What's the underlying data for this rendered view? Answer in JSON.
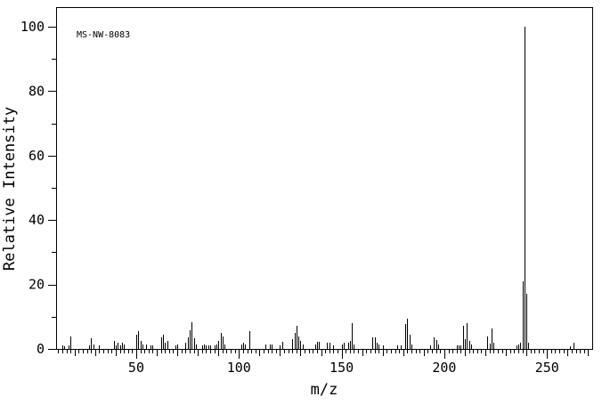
{
  "colors": {
    "foreground": "#000000",
    "background": "#ffffff"
  },
  "chart_data": {
    "type": "bar",
    "subtype": "mass-spectrum",
    "annotation": "MS-NW-8083",
    "xlabel": "m/z",
    "ylabel": "Relative Intensity",
    "xlim": [
      11,
      272
    ],
    "ylim": [
      0,
      106
    ],
    "x_label_ticks": [
      50,
      100,
      150,
      200,
      250
    ],
    "x_medium_tick_step": 10,
    "x_minor_tick_step": 2,
    "y_label_ticks": [
      0,
      20,
      40,
      60,
      80,
      100
    ],
    "y_minor_tick_step": 10,
    "grid": false,
    "legend": false,
    "base_peak": {
      "mz": 239,
      "intensity": 100
    },
    "peaks": [
      [
        14,
        1
      ],
      [
        15,
        0.8
      ],
      [
        17,
        1
      ],
      [
        18,
        4
      ],
      [
        27,
        1
      ],
      [
        28,
        3.3
      ],
      [
        29,
        1.5
      ],
      [
        32,
        1
      ],
      [
        39,
        2.5
      ],
      [
        40,
        1.2
      ],
      [
        41,
        2
      ],
      [
        42,
        1.2
      ],
      [
        43,
        2
      ],
      [
        44,
        1.5
      ],
      [
        50,
        4.5
      ],
      [
        51,
        5.5
      ],
      [
        52,
        2.5
      ],
      [
        53,
        1.5
      ],
      [
        55,
        1.5
      ],
      [
        57,
        1.2
      ],
      [
        58,
        1
      ],
      [
        62,
        3.5
      ],
      [
        63,
        4.5
      ],
      [
        64,
        2
      ],
      [
        65,
        2.5
      ],
      [
        69,
        1
      ],
      [
        70,
        1.5
      ],
      [
        74,
        2
      ],
      [
        75,
        3.5
      ],
      [
        76,
        5.8
      ],
      [
        77,
        8.4
      ],
      [
        78,
        3.3
      ],
      [
        79,
        1.5
      ],
      [
        82,
        1.2
      ],
      [
        83,
        1.3
      ],
      [
        84,
        1
      ],
      [
        85,
        1
      ],
      [
        86,
        1
      ],
      [
        88,
        1.2
      ],
      [
        89,
        1.3
      ],
      [
        90,
        2.5
      ],
      [
        91,
        5
      ],
      [
        92,
        4
      ],
      [
        93,
        1.5
      ],
      [
        101,
        1.5
      ],
      [
        102,
        2
      ],
      [
        103,
        1.3
      ],
      [
        105,
        5.5
      ],
      [
        113,
        1.3
      ],
      [
        115,
        1.5
      ],
      [
        116,
        1.5
      ],
      [
        120,
        1.2
      ],
      [
        121,
        2.2
      ],
      [
        126,
        3
      ],
      [
        127,
        5
      ],
      [
        128,
        7.2
      ],
      [
        129,
        4
      ],
      [
        130,
        2.5
      ],
      [
        131,
        1.5
      ],
      [
        137,
        1.5
      ],
      [
        138,
        2.2
      ],
      [
        139,
        2.2
      ],
      [
        143,
        2
      ],
      [
        144,
        2
      ],
      [
        146,
        1
      ],
      [
        150,
        1.5
      ],
      [
        151,
        2
      ],
      [
        153,
        2
      ],
      [
        154,
        2.5
      ],
      [
        155,
        8
      ],
      [
        156,
        1.5
      ],
      [
        165,
        3.5
      ],
      [
        166,
        3.5
      ],
      [
        167,
        2
      ],
      [
        168,
        1.5
      ],
      [
        170,
        1
      ],
      [
        177,
        1
      ],
      [
        179,
        1.2
      ],
      [
        181,
        7.8
      ],
      [
        182,
        9.3
      ],
      [
        183,
        4.5
      ],
      [
        184,
        1.5
      ],
      [
        193,
        1.2
      ],
      [
        195,
        3.5
      ],
      [
        196,
        2.8
      ],
      [
        197,
        1.3
      ],
      [
        206,
        1
      ],
      [
        207,
        1.2
      ],
      [
        208,
        1.2
      ],
      [
        209,
        7.1
      ],
      [
        210,
        3
      ],
      [
        211,
        8
      ],
      [
        212,
        2.5
      ],
      [
        213,
        1.3
      ],
      [
        221,
        4
      ],
      [
        222,
        1.7
      ],
      [
        223,
        6.3
      ],
      [
        224,
        2
      ],
      [
        235,
        1
      ],
      [
        236,
        1.5
      ],
      [
        237,
        2
      ],
      [
        238,
        21
      ],
      [
        239,
        100
      ],
      [
        240,
        17
      ],
      [
        241,
        2
      ],
      [
        261,
        0.8
      ],
      [
        263,
        1.8
      ]
    ]
  }
}
